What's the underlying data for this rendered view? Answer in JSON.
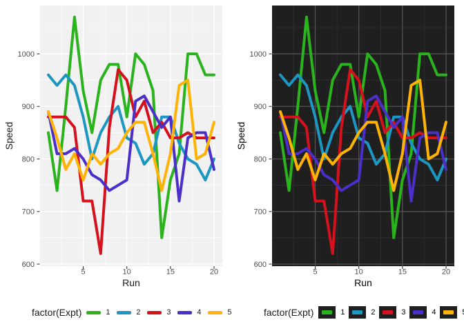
{
  "chart_data": {
    "type": "line",
    "title": "",
    "xlabel": "Run",
    "ylabel": "Speed",
    "legend_title": "factor(Expt)",
    "legend_position": "bottom",
    "grid": true,
    "x": [
      1,
      2,
      3,
      4,
      5,
      6,
      7,
      8,
      9,
      10,
      11,
      12,
      13,
      14,
      15,
      16,
      17,
      18,
      19,
      20
    ],
    "xticks": [
      5,
      10,
      15,
      20
    ],
    "xticks_minor": [
      2.5,
      7.5,
      12.5,
      17.5
    ],
    "yticks": [
      600,
      700,
      800,
      900,
      1000
    ],
    "yticks_minor": [
      650,
      750,
      850,
      950,
      1050
    ],
    "xlim": [
      0.05,
      20.95
    ],
    "ylim": [
      596,
      1092
    ],
    "series": [
      {
        "name": "1",
        "color": "#2BB31E",
        "values": [
          850,
          740,
          900,
          1070,
          930,
          850,
          950,
          980,
          980,
          880,
          1000,
          980,
          930,
          650,
          760,
          810,
          1000,
          1000,
          960,
          960
        ]
      },
      {
        "name": "2",
        "color": "#1E96C2",
        "values": [
          960,
          940,
          960,
          940,
          880,
          800,
          850,
          880,
          900,
          840,
          830,
          790,
          810,
          880,
          880,
          830,
          800,
          790,
          760,
          800
        ]
      },
      {
        "name": "3",
        "color": "#D6111E",
        "values": [
          880,
          880,
          880,
          860,
          720,
          720,
          620,
          860,
          970,
          950,
          880,
          910,
          850,
          870,
          840,
          840,
          850,
          840,
          840,
          840
        ]
      },
      {
        "name": "4",
        "color": "#4B2FC8",
        "values": [
          890,
          810,
          810,
          820,
          800,
          770,
          760,
          740,
          750,
          760,
          910,
          920,
          890,
          860,
          880,
          720,
          840,
          850,
          850,
          780
        ]
      },
      {
        "name": "5",
        "color": "#FFB306",
        "values": [
          890,
          840,
          780,
          810,
          760,
          810,
          790,
          810,
          820,
          850,
          870,
          870,
          810,
          740,
          810,
          940,
          950,
          800,
          810,
          870
        ]
      }
    ],
    "panels": [
      {
        "id": "light",
        "panel_bg": "#F1F1F1",
        "grid_major": "#FFFFFF",
        "grid_minor": "#FFFFFF",
        "axis_text": "#4D4D4D",
        "axis_title": "#1A1A1A",
        "tick_color": "#333333",
        "legend_key_bg": "",
        "legend_text": "#1A1A1A"
      },
      {
        "id": "dark",
        "panel_bg": "#1F1F1F",
        "grid_major": "#4F4F4F",
        "grid_minor": "#2E2E2E",
        "axis_text": "#4D4D4D",
        "axis_title": "#000000",
        "tick_color": "#333333",
        "legend_key_bg": "#1F1F1F",
        "legend_text": "#000000"
      }
    ]
  }
}
